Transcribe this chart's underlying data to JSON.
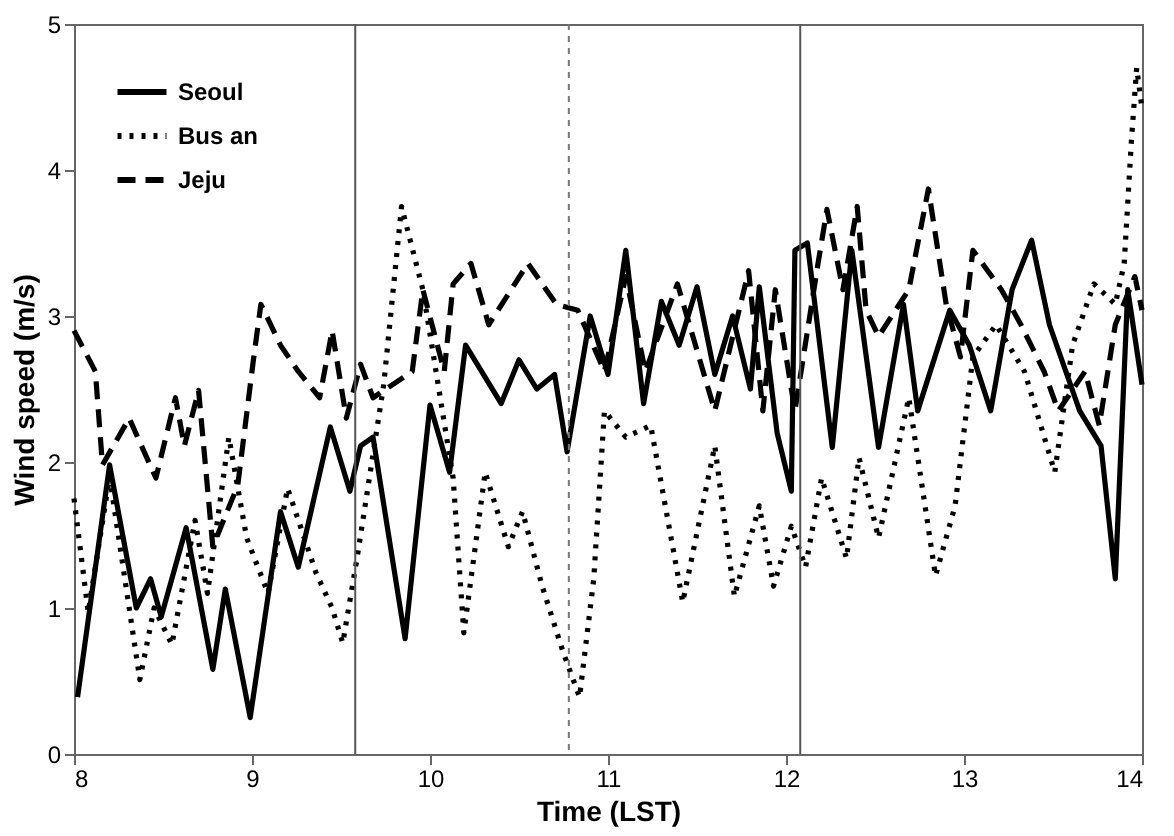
{
  "chart_data": {
    "type": "line",
    "xlabel": "Time (LST)",
    "ylabel": "Wind speed (m/s)",
    "xlim": [
      8,
      14
    ],
    "ylim": [
      0,
      5
    ],
    "xticks": [
      8,
      9,
      10,
      11,
      12,
      13,
      14
    ],
    "yticks": [
      0,
      1,
      2,
      3,
      4,
      5
    ],
    "grid": false,
    "legend": "top left",
    "marker": "none",
    "series": [
      {
        "name": "Seoul",
        "color": "#000000",
        "line_style": "solid",
        "x": [
          8.02,
          8.2,
          8.35,
          8.43,
          8.49,
          8.63,
          8.78,
          8.85,
          8.99,
          9.16,
          9.26,
          9.44,
          9.55,
          9.61,
          9.68,
          9.86,
          10.0,
          10.11,
          10.2,
          10.3,
          10.4,
          10.5,
          10.6,
          10.7,
          10.77,
          10.9,
          11.0,
          11.1,
          11.2,
          11.3,
          11.4,
          11.5,
          11.6,
          11.7,
          11.8,
          11.85,
          11.95,
          12.03,
          12.05,
          12.12,
          12.26,
          12.37,
          12.52,
          12.66,
          12.74,
          12.92,
          13.03,
          13.15,
          13.27,
          13.38,
          13.48,
          13.65,
          13.77,
          13.85,
          13.92,
          14.0
        ],
        "values": [
          0.39,
          1.98,
          1.0,
          1.2,
          0.94,
          1.55,
          0.58,
          1.13,
          0.25,
          1.66,
          1.28,
          2.24,
          1.8,
          2.11,
          2.17,
          0.79,
          2.39,
          1.93,
          2.8,
          2.6,
          2.4,
          2.7,
          2.5,
          2.6,
          2.07,
          3.0,
          2.6,
          3.45,
          2.4,
          3.1,
          2.8,
          3.2,
          2.6,
          3.0,
          2.5,
          3.2,
          2.2,
          1.8,
          3.45,
          3.5,
          2.1,
          3.45,
          2.1,
          3.08,
          2.35,
          3.04,
          2.8,
          2.35,
          3.18,
          3.52,
          2.94,
          2.35,
          2.11,
          1.2,
          3.18,
          2.53
        ]
      },
      {
        "name": "Bus an",
        "color": "#000000",
        "line_style": "dotted",
        "x": [
          8.0,
          8.08,
          8.2,
          8.37,
          8.45,
          8.55,
          8.68,
          8.75,
          8.87,
          8.97,
          9.09,
          9.2,
          9.36,
          9.45,
          9.51,
          9.59,
          9.74,
          9.84,
          9.96,
          10.13,
          10.19,
          10.31,
          10.44,
          10.52,
          10.63,
          10.75,
          10.84,
          10.92,
          10.98,
          11.1,
          11.24,
          11.42,
          11.6,
          11.71,
          11.85,
          11.93,
          12.03,
          12.11,
          12.2,
          12.34,
          12.41,
          12.52,
          12.69,
          12.84,
          12.95,
          13.05,
          13.18,
          13.34,
          13.51,
          13.61,
          13.73,
          13.85,
          13.9,
          13.94,
          13.97,
          14.0
        ],
        "values": [
          1.75,
          0.97,
          1.9,
          0.51,
          1.0,
          0.75,
          1.6,
          1.1,
          2.17,
          1.48,
          1.1,
          1.82,
          1.24,
          1.0,
          0.76,
          1.34,
          2.53,
          3.75,
          3.18,
          1.89,
          0.83,
          1.93,
          1.42,
          1.66,
          1.15,
          0.69,
          0.39,
          1.2,
          2.35,
          2.17,
          2.25,
          1.04,
          2.11,
          1.08,
          1.7,
          1.15,
          1.56,
          1.28,
          1.89,
          1.34,
          2.03,
          1.48,
          2.44,
          1.22,
          1.7,
          2.72,
          2.94,
          2.62,
          1.93,
          2.8,
          3.22,
          3.08,
          3.36,
          4.19,
          4.7,
          4.42
        ]
      },
      {
        "name": "Jeju",
        "color": "#000000",
        "line_style": "dashed",
        "x": [
          8.0,
          8.12,
          8.16,
          8.31,
          8.46,
          8.57,
          8.62,
          8.7,
          8.78,
          8.92,
          9.01,
          9.05,
          9.16,
          9.26,
          9.38,
          9.45,
          9.53,
          9.61,
          9.68,
          9.9,
          9.96,
          10.08,
          10.13,
          10.23,
          10.33,
          10.55,
          10.71,
          10.83,
          10.98,
          11.1,
          11.21,
          11.39,
          11.6,
          11.79,
          11.87,
          11.94,
          12.05,
          12.18,
          12.23,
          12.32,
          12.4,
          12.45,
          12.52,
          12.69,
          12.8,
          12.9,
          12.98,
          13.05,
          13.21,
          13.32,
          13.45,
          13.53,
          13.68,
          13.76,
          13.85,
          13.96,
          14.0
        ],
        "values": [
          2.9,
          2.62,
          1.98,
          2.3,
          1.89,
          2.44,
          2.11,
          2.49,
          1.42,
          1.84,
          2.72,
          3.08,
          2.8,
          2.62,
          2.44,
          2.9,
          2.3,
          2.67,
          2.44,
          2.62,
          3.18,
          2.62,
          3.22,
          3.36,
          2.94,
          3.36,
          3.08,
          3.04,
          2.62,
          3.27,
          2.62,
          3.22,
          2.35,
          3.31,
          2.35,
          3.18,
          2.35,
          3.36,
          3.73,
          3.18,
          3.75,
          3.04,
          2.86,
          3.18,
          3.87,
          3.08,
          2.72,
          3.45,
          3.18,
          2.94,
          2.62,
          2.35,
          2.62,
          2.25,
          2.94,
          3.27,
          3.04
        ]
      }
    ],
    "ref_lines": [
      {
        "axis": "x",
        "value": 9.58,
        "color": "#555555",
        "line_style": "solid"
      },
      {
        "axis": "x",
        "value": 10.78,
        "color": "#777777",
        "line_style": "dashed"
      },
      {
        "axis": "x",
        "value": 12.08,
        "color": "#555555",
        "line_style": "solid"
      }
    ]
  }
}
